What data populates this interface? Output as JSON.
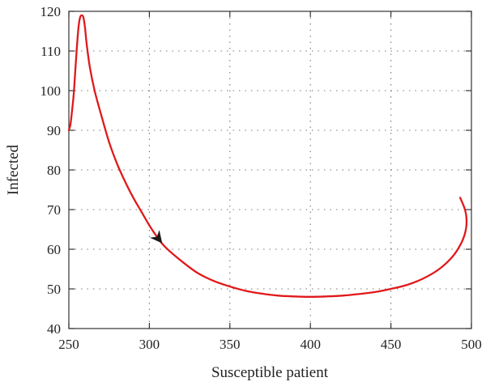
{
  "chart_data": {
    "type": "line",
    "title": "",
    "xlabel": "Susceptible patient",
    "ylabel": "Infected",
    "xlim": [
      250,
      500
    ],
    "ylim": [
      40,
      120
    ],
    "x_ticks": [
      "250",
      "300",
      "350",
      "400",
      "450",
      "500"
    ],
    "y_ticks": [
      "40",
      "50",
      "60",
      "70",
      "80",
      "90",
      "100",
      "110",
      "120"
    ],
    "grid": "dotted",
    "legend": "none",
    "series": [
      {
        "color": "#e0191b",
        "points": [
          [
            493,
            73
          ],
          [
            496,
            70
          ],
          [
            497,
            67
          ],
          [
            496,
            64
          ],
          [
            493,
            61
          ],
          [
            488,
            58
          ],
          [
            480,
            55
          ],
          [
            470,
            52.6
          ],
          [
            460,
            51
          ],
          [
            450,
            50
          ],
          [
            440,
            49.2
          ],
          [
            430,
            48.7
          ],
          [
            420,
            48.3
          ],
          [
            410,
            48.1
          ],
          [
            400,
            48
          ],
          [
            390,
            48.1
          ],
          [
            380,
            48.3
          ],
          [
            370,
            48.8
          ],
          [
            360,
            49.5
          ],
          [
            350,
            50.6
          ],
          [
            340,
            52
          ],
          [
            330,
            54
          ],
          [
            320,
            57
          ],
          [
            310,
            60.5
          ],
          [
            305,
            63
          ],
          [
            300,
            66
          ],
          [
            295,
            69.5
          ],
          [
            290,
            73
          ],
          [
            285,
            77
          ],
          [
            280,
            81.5
          ],
          [
            275,
            87
          ],
          [
            270,
            94
          ],
          [
            266,
            100
          ],
          [
            263,
            106
          ],
          [
            261,
            112
          ],
          [
            260,
            116
          ],
          [
            259,
            118.5
          ],
          [
            258,
            119
          ],
          [
            257,
            118.5
          ],
          [
            256,
            116
          ],
          [
            255,
            111
          ],
          [
            254,
            105
          ],
          [
            253,
            99
          ],
          [
            252,
            95
          ],
          [
            251,
            91.5
          ],
          [
            250,
            90
          ]
        ]
      }
    ],
    "annotations": [
      {
        "type": "arrow",
        "color": "#1a1a1a",
        "x": 308,
        "y": 61.5,
        "direction": "along-curve"
      }
    ]
  }
}
